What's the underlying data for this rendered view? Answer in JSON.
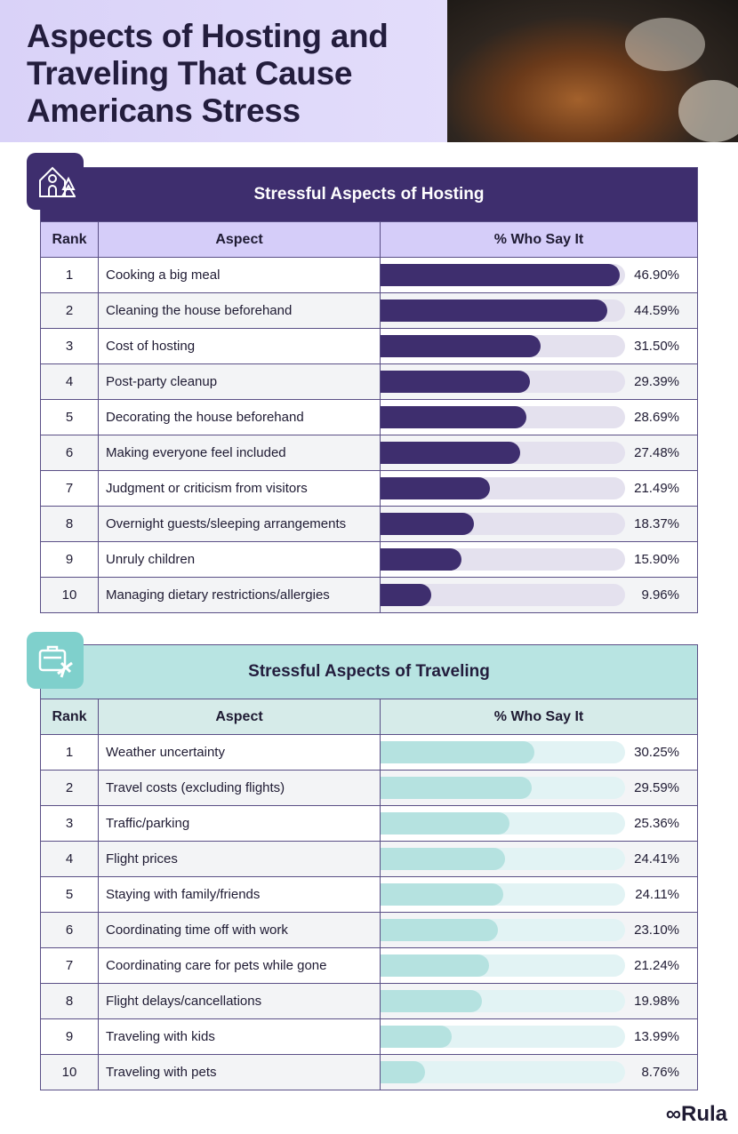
{
  "title": "Aspects of Hosting and Traveling That Cause Americans Stress",
  "brand": "Rula",
  "colors": {
    "hosting_bar": "#3e2e6e",
    "hosting_track": "#e4e1ee",
    "hosting_header": "#d5cdf9",
    "traveling_bar": "#b5e2e0",
    "traveling_track": "#e2f3f4",
    "traveling_header": "#d6ebe9",
    "traveling_title": "#b8e4e2"
  },
  "chart_data": [
    {
      "type": "table",
      "title": "Stressful Aspects of Hosting",
      "icon": "house-icon",
      "columns": [
        "Rank",
        "Aspect",
        "% Who Say It"
      ],
      "xlim": [
        0,
        48
      ],
      "rows": [
        {
          "rank": "1",
          "aspect": "Cooking a big meal",
          "value": 46.9,
          "label": "46.90%"
        },
        {
          "rank": "2",
          "aspect": "Cleaning the house beforehand",
          "value": 44.59,
          "label": "44.59%"
        },
        {
          "rank": "3",
          "aspect": "Cost of hosting",
          "value": 31.5,
          "label": "31.50%"
        },
        {
          "rank": "4",
          "aspect": "Post-party cleanup",
          "value": 29.39,
          "label": "29.39%"
        },
        {
          "rank": "5",
          "aspect": "Decorating the house beforehand",
          "value": 28.69,
          "label": "28.69%"
        },
        {
          "rank": "6",
          "aspect": "Making everyone feel included",
          "value": 27.48,
          "label": "27.48%"
        },
        {
          "rank": "7",
          "aspect": "Judgment or criticism from visitors",
          "value": 21.49,
          "label": "21.49%"
        },
        {
          "rank": "8",
          "aspect": "Overnight guests/sleeping arrangements",
          "value": 18.37,
          "label": "18.37%"
        },
        {
          "rank": "9",
          "aspect": "Unruly children",
          "value": 15.9,
          "label": "15.90%"
        },
        {
          "rank": "10",
          "aspect": "Managing dietary restrictions/allergies",
          "value": 9.96,
          "label": "9.96%"
        }
      ]
    },
    {
      "type": "table",
      "title": "Stressful Aspects of Traveling",
      "icon": "suitcase-plane-icon",
      "columns": [
        "Rank",
        "Aspect",
        "% Who Say It"
      ],
      "xlim": [
        0,
        48
      ],
      "rows": [
        {
          "rank": "1",
          "aspect": "Weather uncertainty",
          "value": 30.25,
          "label": "30.25%"
        },
        {
          "rank": "2",
          "aspect": "Travel costs (excluding flights)",
          "value": 29.59,
          "label": "29.59%"
        },
        {
          "rank": "3",
          "aspect": "Traffic/parking",
          "value": 25.36,
          "label": "25.36%"
        },
        {
          "rank": "4",
          "aspect": "Flight prices",
          "value": 24.41,
          "label": "24.41%"
        },
        {
          "rank": "5",
          "aspect": "Staying with family/friends",
          "value": 24.11,
          "label": "24.11%"
        },
        {
          "rank": "6",
          "aspect": "Coordinating time off with work",
          "value": 23.1,
          "label": "23.10%"
        },
        {
          "rank": "7",
          "aspect": "Coordinating care for pets while gone",
          "value": 21.24,
          "label": "21.24%"
        },
        {
          "rank": "8",
          "aspect": "Flight delays/cancellations",
          "value": 19.98,
          "label": "19.98%"
        },
        {
          "rank": "9",
          "aspect": "Traveling with kids",
          "value": 13.99,
          "label": "13.99%"
        },
        {
          "rank": "10",
          "aspect": "Traveling with pets",
          "value": 8.76,
          "label": "8.76%"
        }
      ]
    }
  ]
}
